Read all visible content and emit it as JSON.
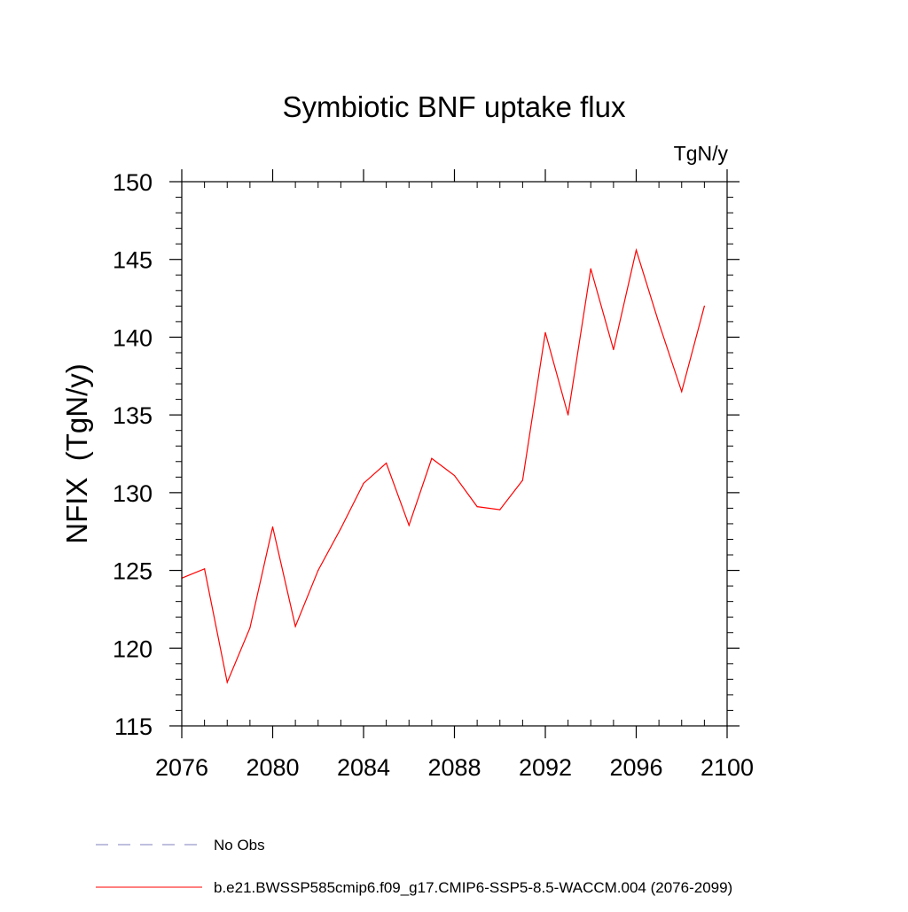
{
  "chart_data": {
    "type": "line",
    "title": "Symbiotic BNF uptake flux",
    "units_label": "TgN/y",
    "xlabel": "",
    "ylabel": "NFIX  (TgN/y)",
    "xlim": [
      2076,
      2100
    ],
    "ylim": [
      115,
      150
    ],
    "x_ticks": [
      2076,
      2080,
      2084,
      2088,
      2092,
      2096,
      2100
    ],
    "y_ticks": [
      115,
      120,
      125,
      130,
      135,
      140,
      145,
      150
    ],
    "x_minor_step": 1,
    "y_minor_step": 1,
    "grid": false,
    "legend_position": "bottom",
    "series": [
      {
        "name": "b.e21.BWSSP585cmip6.f09_g17.CMIP6-SSP5-8.5-WACCM.004 (2076-2099)",
        "color": "#ff0000",
        "line_style": "solid",
        "x": [
          2076,
          2077,
          2078,
          2079,
          2080,
          2081,
          2082,
          2083,
          2084,
          2085,
          2086,
          2087,
          2088,
          2089,
          2090,
          2091,
          2092,
          2093,
          2094,
          2095,
          2096,
          2097,
          2098,
          2099
        ],
        "values": [
          124.5,
          125.1,
          117.8,
          121.3,
          127.8,
          121.4,
          125.0,
          127.7,
          130.6,
          131.9,
          127.9,
          132.2,
          131.1,
          129.1,
          128.9,
          130.8,
          140.3,
          135.0,
          144.4,
          139.2,
          145.6,
          140.9,
          136.5,
          142.0
        ]
      }
    ],
    "legend": [
      {
        "label": "No Obs",
        "color": "#7f7fbf",
        "line_style": "dashed"
      },
      {
        "label": "b.e21.BWSSP585cmip6.f09_g17.CMIP6-SSP5-8.5-WACCM.004 (2076-2099)",
        "color": "#ff0000",
        "line_style": "solid"
      }
    ]
  }
}
